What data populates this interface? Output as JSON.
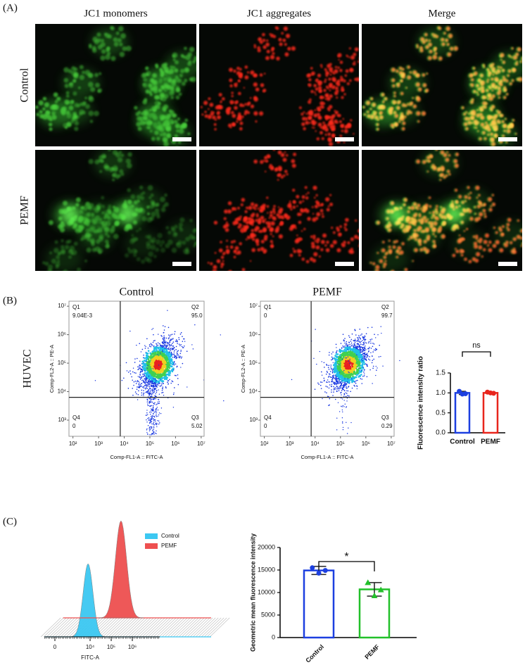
{
  "panel_labels": [
    "(A)",
    "(B)",
    "(C)"
  ],
  "microscopy": {
    "columns": [
      "JC1 monomers",
      "JC1 aggregates",
      "Merge"
    ],
    "rows": [
      "Control",
      "PEMF"
    ]
  },
  "chart_data": [
    {
      "type": "flow-scatter",
      "title": "Control",
      "row_label": "HUVEC",
      "xlabel": "Comp-FL1-A :: FITC-A",
      "ylabel": "Comp-FL2-A :: PE-A",
      "log": true,
      "xlim": [
        70,
        13000000
      ],
      "ylim": [
        270,
        15000000
      ],
      "xticks": [
        {
          "value": 100,
          "label": "10²"
        },
        {
          "value": 1000,
          "label": "10³"
        },
        {
          "value": 10000,
          "label": "10⁴"
        },
        {
          "value": 100000,
          "label": "10⁵"
        },
        {
          "value": 1000000,
          "label": "10⁶"
        },
        {
          "value": 10000000,
          "label": "10⁷"
        }
      ],
      "yticks": [
        {
          "value": 1000,
          "label": "10³"
        },
        {
          "value": 10000,
          "label": "10⁴"
        },
        {
          "value": 100000,
          "label": "10⁵"
        },
        {
          "value": 1000000,
          "label": "10⁶"
        },
        {
          "value": 10000000,
          "label": "10⁷"
        }
      ],
      "gate": {
        "x": 7000,
        "y": 6300
      },
      "quadrants": [
        "Q1",
        "Q2",
        "Q4",
        "Q3"
      ],
      "values": [
        0.00904,
        95,
        0,
        5.02
      ],
      "value_labels": [
        "9.04E-3",
        "95.0",
        "0",
        "5.02"
      ]
    },
    {
      "type": "flow-scatter",
      "title": "PEMF",
      "xlabel": "Comp-FL1-A :: FITC-A",
      "ylabel": "Comp-FL2-A :: PE-A",
      "log": true,
      "xlim": [
        70,
        13000000
      ],
      "ylim": [
        270,
        15000000
      ],
      "xticks": [
        {
          "value": 100,
          "label": "10²"
        },
        {
          "value": 1000,
          "label": "10³"
        },
        {
          "value": 10000,
          "label": "10⁴"
        },
        {
          "value": 100000,
          "label": "10⁵"
        },
        {
          "value": 1000000,
          "label": "10⁶"
        },
        {
          "value": 10000000,
          "label": "10⁷"
        }
      ],
      "yticks": [
        {
          "value": 1000,
          "label": "10³"
        },
        {
          "value": 10000,
          "label": "10⁴"
        },
        {
          "value": 100000,
          "label": "10⁵"
        },
        {
          "value": 1000000,
          "label": "10⁶"
        },
        {
          "value": 10000000,
          "label": "10⁷"
        }
      ],
      "gate": {
        "x": 7000,
        "y": 6300
      },
      "quadrants": [
        "Q1",
        "Q2",
        "Q4",
        "Q3"
      ],
      "values": [
        0,
        99.7,
        0,
        0.29
      ],
      "value_labels": [
        "0",
        "99.7",
        "0",
        "0.29"
      ]
    },
    {
      "type": "bar",
      "ylabel": "Fluorescence intensity ratio",
      "categories": [
        "Control",
        "PEMF"
      ],
      "values": [
        1.0,
        1.0
      ],
      "errors": [
        0.04,
        0.02
      ],
      "points": [
        [
          1.04,
          0.97,
          0.98
        ],
        [
          1.02,
          1.0,
          0.99
        ]
      ],
      "markers": [
        "circle",
        "circle"
      ],
      "colors": [
        "#1c3fe0",
        "#e8251c"
      ],
      "ylim": [
        0,
        1.5
      ],
      "yticks": [
        {
          "value": 0,
          "label": "0.0"
        },
        0.5,
        {
          "value": 1,
          "label": "1.0"
        },
        1.5
      ],
      "annotation": "ns"
    },
    {
      "type": "histogram-overlay",
      "xlabel": "FITC-A",
      "xlim": [
        -600,
        20000000
      ],
      "xticks": [
        0,
        {
          "value": 10000,
          "label": "10⁴"
        },
        {
          "value": 100000,
          "label": "10⁵"
        },
        {
          "value": 1000000,
          "label": "10⁶"
        }
      ],
      "series": [
        {
          "name": "Control",
          "color": "#3cc8f2",
          "peak": 8000
        },
        {
          "name": "PEMF",
          "color": "#ee5050",
          "peak": 290000
        }
      ]
    },
    {
      "type": "bar",
      "ylabel": "Geometric mean fluorescence intensity",
      "categories": [
        "Control",
        "PEMF"
      ],
      "values": [
        14900,
        10700
      ],
      "errors": [
        900,
        1500
      ],
      "points": [
        [
          15500,
          14300,
          14900
        ],
        [
          12200,
          9300,
          10600
        ]
      ],
      "markers": [
        "circle",
        "triangle"
      ],
      "colors": [
        "#1c3fe0",
        "#22c02a"
      ],
      "ylim": [
        0,
        20000
      ],
      "yticks": [
        0,
        5000,
        10000,
        15000,
        20000
      ],
      "annotation": "*"
    }
  ]
}
